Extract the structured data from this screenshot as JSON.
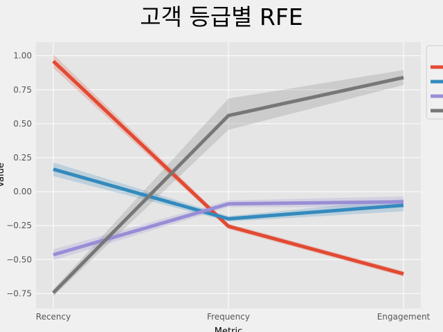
{
  "chart_data": {
    "type": "line",
    "title": "고객 등급별 RFE",
    "xlabel": "Metric",
    "ylabel": "Value",
    "categories": [
      "Recency",
      "Frequency",
      "Engagement"
    ],
    "yticks": [
      1.0,
      0.75,
      0.5,
      0.25,
      0.0,
      -0.25,
      -0.5,
      -0.75
    ],
    "ytick_labels": [
      "1.00",
      "0.75",
      "0.50",
      "0.25",
      "0.00",
      "−0.25",
      "−0.50",
      "−0.75"
    ],
    "ylim": [
      -0.86,
      1.1
    ],
    "grid": true,
    "legend_placement": "top-right",
    "series": [
      {
        "color": "#E24A33",
        "values": [
          0.96,
          -0.255,
          -0.605
        ],
        "ci_low": [
          0.91,
          -0.275,
          -0.625
        ],
        "ci_high": [
          1.01,
          -0.235,
          -0.585
        ]
      },
      {
        "color": "#348ABD",
        "values": [
          0.165,
          -0.2,
          -0.1
        ],
        "ci_low": [
          0.115,
          -0.22,
          -0.145
        ],
        "ci_high": [
          0.215,
          -0.18,
          -0.055
        ]
      },
      {
        "color": "#988ED5",
        "values": [
          -0.465,
          -0.09,
          -0.075
        ],
        "ci_low": [
          -0.505,
          -0.115,
          -0.115
        ],
        "ci_high": [
          -0.425,
          -0.065,
          -0.035
        ]
      },
      {
        "color": "#777777",
        "values": [
          -0.745,
          0.56,
          0.84
        ],
        "ci_low": [
          -0.77,
          0.455,
          0.785
        ],
        "ci_high": [
          -0.72,
          0.685,
          0.895
        ]
      }
    ]
  }
}
